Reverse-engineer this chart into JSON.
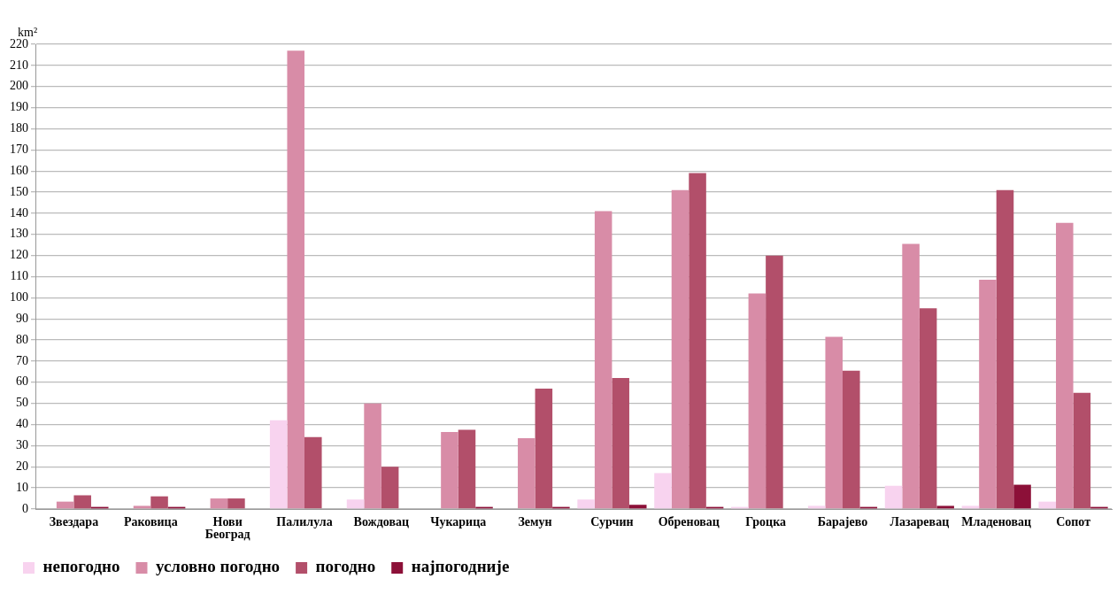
{
  "chart_data": {
    "type": "bar",
    "ylabel": "km²",
    "categories": [
      "Звездара",
      "Раковица",
      "Нови Београд",
      "Палилула",
      "Вождовац",
      "Чукарица",
      "Земун",
      "Сурчин",
      "Обреновац",
      "Гроцка",
      "Барајево",
      "Лазаревац",
      "Младеновац",
      "Сопот"
    ],
    "series": [
      {
        "name": "непогодно",
        "color": "#f8d3ef",
        "values": [
          0,
          0,
          0,
          42,
          4.5,
          0,
          0,
          4.5,
          17,
          1,
          1.5,
          11,
          1.5,
          3.5
        ]
      },
      {
        "name": "условно погодно",
        "color": "#d88ca7",
        "values": [
          3.5,
          1.5,
          5,
          217,
          50,
          36.5,
          33.5,
          141,
          151,
          102,
          81.5,
          125.5,
          108.5,
          135.5
        ]
      },
      {
        "name": "погодно",
        "color": "#b24f6a",
        "values": [
          6.5,
          6,
          5,
          34,
          20,
          37.5,
          57,
          62,
          159,
          120,
          65.5,
          95,
          151,
          55
        ]
      },
      {
        "name": "најпогодније",
        "color": "#8c1038",
        "values": [
          1,
          1,
          0,
          0,
          0,
          1,
          1,
          2,
          1,
          0,
          1,
          1.5,
          11.5,
          1
        ]
      }
    ],
    "ylim": [
      0,
      220
    ],
    "yticks": [
      0,
      10,
      20,
      30,
      40,
      50,
      60,
      70,
      80,
      90,
      100,
      110,
      120,
      130,
      140,
      150,
      160,
      170,
      180,
      190,
      200,
      210,
      220
    ],
    "grid": "y",
    "legend": "bottom left"
  }
}
